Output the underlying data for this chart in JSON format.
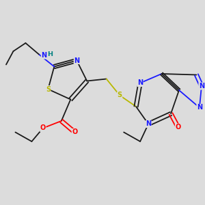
{
  "background_color": "#dcdcdc",
  "figsize": [
    3.0,
    3.0
  ],
  "dpi": 100,
  "C": "#1a1a1a",
  "N": "#1a1aff",
  "O": "#ff0000",
  "S": "#b8b800",
  "H": "#008080",
  "lw": 1.3,
  "fs": 6.5
}
